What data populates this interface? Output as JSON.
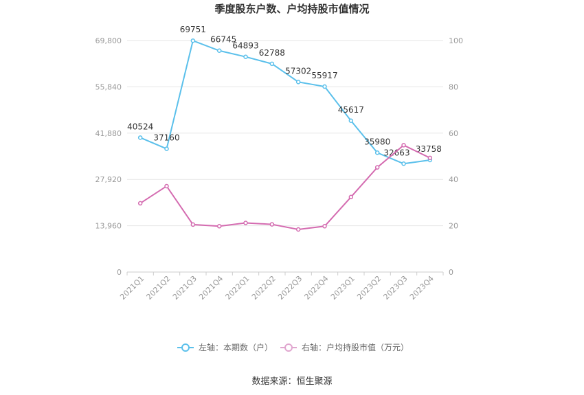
{
  "chart_data": {
    "type": "line",
    "title": "季度股东户数、户均持股市值情况",
    "categories": [
      "2021Q1",
      "2021Q2",
      "2021Q3",
      "2021Q4",
      "2022Q1",
      "2022Q2",
      "2022Q3",
      "2022Q4",
      "2023Q1",
      "2023Q2",
      "2023Q3",
      "2023Q4"
    ],
    "left_axis": {
      "ticks": [
        "0",
        "13,960",
        "27,920",
        "41,880",
        "55,840",
        "69,800"
      ],
      "range": [
        0,
        69800
      ]
    },
    "right_axis": {
      "ticks": [
        "0",
        "20",
        "40",
        "60",
        "80",
        "100"
      ],
      "range": [
        0,
        100
      ]
    },
    "series": [
      {
        "name": "左轴：本期数（户）",
        "axis": "left",
        "color": "#5bc0eb",
        "values": [
          40524,
          37160,
          69751,
          66745,
          64893,
          62788,
          57302,
          55917,
          45617,
          35980,
          32663,
          33758
        ],
        "labels": [
          "40524",
          "37160",
          "69751",
          "66745",
          "64893",
          "62788",
          "57302",
          "55917",
          "45617",
          "35980",
          "32663",
          "33758"
        ]
      },
      {
        "name": "右轴：户均持股市值（万元）",
        "axis": "right",
        "color": "#d46bb0",
        "values": [
          29.7,
          37.1,
          20.5,
          19.8,
          21.2,
          20.6,
          18.4,
          19.8,
          32.4,
          45.2,
          54.8,
          49.3
        ]
      }
    ],
    "legend_position": "bottom-center",
    "source": "数据来源：恒生聚源"
  }
}
